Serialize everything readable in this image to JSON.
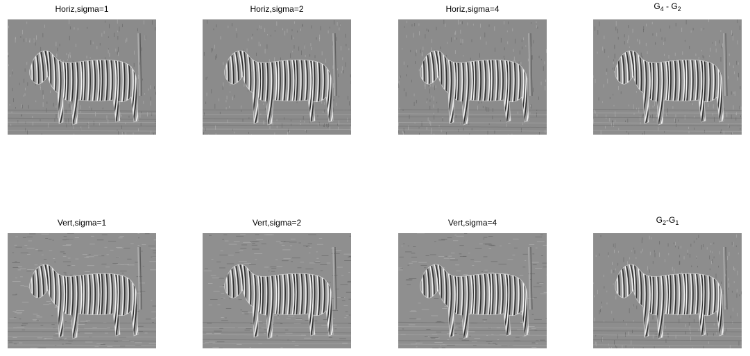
{
  "figure": {
    "panels": [
      {
        "id": "horiz-1",
        "title": "Horiz,sigma=1",
        "image": "zebra-horizontal-derivative-sigma1"
      },
      {
        "id": "horiz-2",
        "title": "Horiz,sigma=2",
        "image": "zebra-horizontal-derivative-sigma2"
      },
      {
        "id": "horiz-4",
        "title": "Horiz,sigma=4",
        "image": "zebra-horizontal-derivative-sigma4"
      },
      {
        "id": "g4-g2",
        "title_main": "G",
        "title_sub1": "4",
        "title_mid": " - G",
        "title_sub2": "2",
        "image": "zebra-difference-of-gaussians-g4-g2"
      },
      {
        "id": "vert-1",
        "title": "Vert,sigma=1",
        "image": "zebra-vertical-derivative-sigma1"
      },
      {
        "id": "vert-2",
        "title": "Vert,sigma=2",
        "image": "zebra-vertical-derivative-sigma2"
      },
      {
        "id": "vert-4",
        "title": "Vert,sigma=4",
        "image": "zebra-vertical-derivative-sigma4"
      },
      {
        "id": "g2-g1",
        "title_main": "G",
        "title_sub1": "2",
        "title_mid": "-G",
        "title_sub2": "1",
        "image": "zebra-difference-of-gaussians-g2-g1"
      }
    ]
  }
}
